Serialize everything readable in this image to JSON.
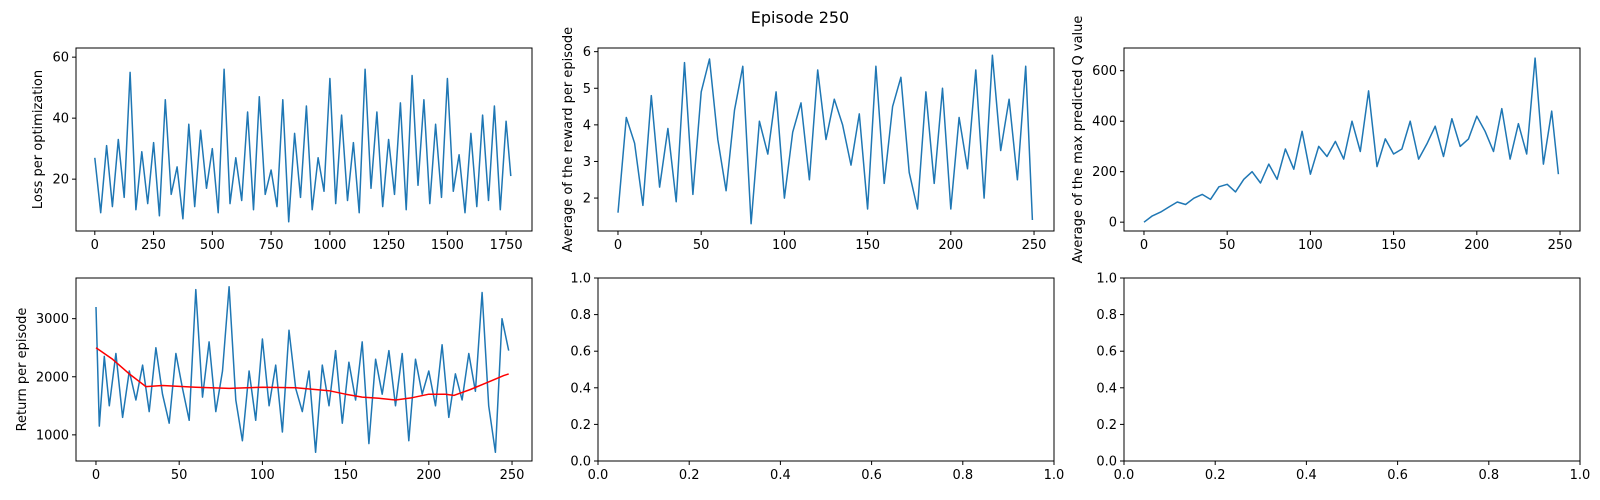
{
  "figure": {
    "suptitle": "Episode 250",
    "line_color": "#1f77b4",
    "avg_color": "#ff0000"
  },
  "chart_data": [
    {
      "id": "loss",
      "type": "line",
      "title": "",
      "xlabel": "",
      "ylabel": "Loss per optimization",
      "xlim": [
        -80,
        1860
      ],
      "ylim": [
        3,
        63
      ],
      "xticks": [
        0,
        250,
        500,
        750,
        1000,
        1250,
        1500,
        1750
      ],
      "yticks": [
        20,
        40,
        60
      ],
      "series": [
        {
          "x": [
            0,
            25,
            50,
            75,
            100,
            125,
            150,
            175,
            200,
            225,
            250,
            275,
            300,
            325,
            350,
            375,
            400,
            425,
            450,
            475,
            500,
            525,
            550,
            575,
            600,
            625,
            650,
            675,
            700,
            725,
            750,
            775,
            800,
            825,
            850,
            875,
            900,
            925,
            950,
            975,
            1000,
            1025,
            1050,
            1075,
            1100,
            1125,
            1150,
            1175,
            1200,
            1225,
            1250,
            1275,
            1300,
            1325,
            1350,
            1375,
            1400,
            1425,
            1450,
            1475,
            1500,
            1525,
            1550,
            1575,
            1600,
            1625,
            1650,
            1675,
            1700,
            1725,
            1750,
            1770
          ],
          "y": [
            27,
            9,
            31,
            11,
            33,
            14,
            55,
            10,
            29,
            12,
            32,
            8,
            46,
            15,
            24,
            7,
            38,
            11,
            36,
            17,
            30,
            9,
            56,
            12,
            27,
            13,
            42,
            10,
            47,
            15,
            23,
            11,
            46,
            6,
            35,
            14,
            44,
            10,
            27,
            16,
            53,
            12,
            41,
            13,
            32,
            9,
            56,
            17,
            42,
            11,
            33,
            15,
            45,
            10,
            54,
            18,
            46,
            12,
            38,
            14,
            53,
            16,
            28,
            9,
            35,
            11,
            41,
            13,
            44,
            10,
            39,
            21
          ]
        }
      ]
    },
    {
      "id": "reward",
      "type": "line",
      "title": "",
      "xlabel": "",
      "ylabel": "Average of the reward per episode",
      "xlim": [
        -12,
        262
      ],
      "ylim": [
        1.1,
        6.1
      ],
      "xticks": [
        0,
        50,
        100,
        150,
        200,
        250
      ],
      "yticks": [
        2,
        3,
        4,
        5,
        6
      ],
      "series": [
        {
          "x": [
            0,
            5,
            10,
            15,
            20,
            25,
            30,
            35,
            40,
            45,
            50,
            55,
            60,
            65,
            70,
            75,
            80,
            85,
            90,
            95,
            100,
            105,
            110,
            115,
            120,
            125,
            130,
            135,
            140,
            145,
            150,
            155,
            160,
            165,
            170,
            175,
            180,
            185,
            190,
            195,
            200,
            205,
            210,
            215,
            220,
            225,
            230,
            235,
            240,
            245,
            249
          ],
          "y": [
            1.6,
            4.2,
            3.5,
            1.8,
            4.8,
            2.3,
            3.9,
            1.9,
            5.7,
            2.1,
            4.9,
            5.8,
            3.6,
            2.2,
            4.4,
            5.6,
            1.3,
            4.1,
            3.2,
            4.9,
            2.0,
            3.8,
            4.6,
            2.5,
            5.5,
            3.6,
            4.7,
            4.0,
            2.9,
            4.3,
            1.7,
            5.6,
            2.4,
            4.5,
            5.3,
            2.7,
            1.7,
            4.9,
            2.4,
            5.0,
            1.7,
            4.2,
            2.8,
            5.5,
            2.0,
            5.9,
            3.3,
            4.7,
            2.5,
            5.6,
            1.4
          ]
        }
      ]
    },
    {
      "id": "qvalue",
      "type": "line",
      "title": "",
      "xlabel": "",
      "ylabel": "Average of the max predicted Q value",
      "xlim": [
        -12,
        262
      ],
      "ylim": [
        -35,
        690
      ],
      "xticks": [
        0,
        50,
        100,
        150,
        200,
        250
      ],
      "yticks": [
        0,
        200,
        400,
        600
      ],
      "series": [
        {
          "x": [
            0,
            5,
            10,
            15,
            20,
            25,
            30,
            35,
            40,
            45,
            50,
            55,
            60,
            65,
            70,
            75,
            80,
            85,
            90,
            95,
            100,
            105,
            110,
            115,
            120,
            125,
            130,
            135,
            140,
            145,
            150,
            155,
            160,
            165,
            170,
            175,
            180,
            185,
            190,
            195,
            200,
            205,
            210,
            215,
            220,
            225,
            230,
            235,
            240,
            245,
            249
          ],
          "y": [
            0,
            25,
            40,
            60,
            80,
            70,
            95,
            110,
            90,
            140,
            150,
            120,
            170,
            200,
            155,
            230,
            170,
            290,
            210,
            360,
            190,
            300,
            260,
            320,
            250,
            400,
            280,
            520,
            220,
            330,
            270,
            290,
            400,
            250,
            310,
            380,
            260,
            410,
            300,
            330,
            420,
            360,
            280,
            450,
            250,
            390,
            270,
            650,
            230,
            440,
            190
          ]
        }
      ]
    },
    {
      "id": "return",
      "type": "line",
      "title": "",
      "xlabel": "",
      "ylabel": "Return per episode",
      "xlim": [
        -12,
        262
      ],
      "ylim": [
        550,
        3700
      ],
      "xticks": [
        0,
        50,
        100,
        150,
        200,
        250
      ],
      "yticks": [
        1000,
        2000,
        3000
      ],
      "series": [
        {
          "x": [
            0,
            2,
            5,
            8,
            12,
            16,
            20,
            24,
            28,
            32,
            36,
            40,
            44,
            48,
            52,
            56,
            60,
            64,
            68,
            72,
            76,
            80,
            84,
            88,
            92,
            96,
            100,
            104,
            108,
            112,
            116,
            120,
            124,
            128,
            132,
            136,
            140,
            144,
            148,
            152,
            156,
            160,
            164,
            168,
            172,
            176,
            180,
            184,
            188,
            192,
            196,
            200,
            204,
            208,
            212,
            216,
            220,
            224,
            228,
            232,
            236,
            240,
            244,
            248
          ],
          "y": [
            3200,
            1150,
            2350,
            1500,
            2400,
            1300,
            2100,
            1600,
            2200,
            1400,
            2500,
            1700,
            1200,
            2400,
            1800,
            1250,
            3500,
            1650,
            2600,
            1400,
            2100,
            3550,
            1600,
            900,
            2100,
            1250,
            2650,
            1500,
            2200,
            1050,
            2800,
            1800,
            1400,
            2100,
            700,
            2200,
            1500,
            2450,
            1200,
            2250,
            1600,
            2600,
            850,
            2300,
            1700,
            2450,
            1500,
            2400,
            900,
            2300,
            1700,
            2100,
            1500,
            2550,
            1300,
            2050,
            1600,
            2400,
            1750,
            3450,
            1500,
            700,
            3000,
            2450
          ]
        },
        {
          "name": "",
          "x": [
            0,
            10,
            20,
            30,
            40,
            60,
            80,
            100,
            120,
            140,
            150,
            160,
            170,
            180,
            190,
            200,
            210,
            215,
            225,
            235,
            245,
            248
          ],
          "y": [
            2500,
            2300,
            2050,
            1830,
            1850,
            1820,
            1800,
            1820,
            1810,
            1760,
            1700,
            1650,
            1630,
            1600,
            1640,
            1700,
            1700,
            1680,
            1780,
            1900,
            2020,
            2050
          ]
        }
      ]
    },
    {
      "id": "empty1",
      "type": "line",
      "title": "",
      "xlabel": "",
      "ylabel": "",
      "xlim": [
        0,
        1
      ],
      "ylim": [
        0,
        1
      ],
      "xticks": [
        0.0,
        0.2,
        0.4,
        0.6,
        0.8,
        1.0
      ],
      "yticks": [
        0.0,
        0.2,
        0.4,
        0.6,
        0.8,
        1.0
      ],
      "series": []
    },
    {
      "id": "empty2",
      "type": "line",
      "title": "",
      "xlabel": "",
      "ylabel": "",
      "xlim": [
        0,
        1
      ],
      "ylim": [
        0,
        1
      ],
      "xticks": [
        0.0,
        0.2,
        0.4,
        0.6,
        0.8,
        1.0
      ],
      "yticks": [
        0.0,
        0.2,
        0.4,
        0.6,
        0.8,
        1.0
      ],
      "series": []
    }
  ]
}
